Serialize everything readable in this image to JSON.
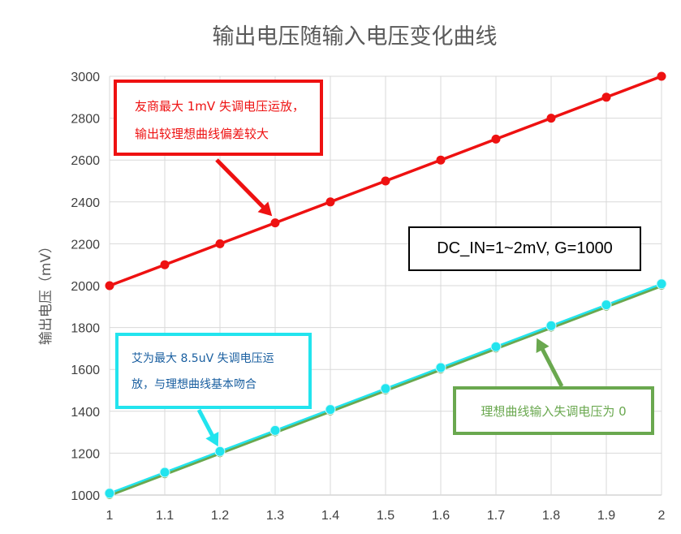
{
  "chart_data": {
    "type": "line",
    "title": "输出电压随输入电压变化曲线",
    "xlabel": "",
    "ylabel": "输出电压（mV）",
    "x": [
      1,
      1.1,
      1.2,
      1.3,
      1.4,
      1.5,
      1.6,
      1.7,
      1.8,
      1.9,
      2
    ],
    "x_tick_labels": [
      "1",
      "1.1",
      "1.2",
      "1.3",
      "1.4",
      "1.5",
      "1.6",
      "1.7",
      "1.8",
      "1.9",
      "2"
    ],
    "y_tick_labels": [
      "1000",
      "1200",
      "1400",
      "1600",
      "1800",
      "2000",
      "2200",
      "2400",
      "2600",
      "2800",
      "3000"
    ],
    "xlim": [
      1,
      2
    ],
    "ylim": [
      1000,
      3000
    ],
    "grid": true,
    "series": [
      {
        "color": "#ee1111",
        "values": [
          2000,
          2100,
          2200,
          2300,
          2400,
          2500,
          2600,
          2700,
          2800,
          2900,
          3000
        ]
      },
      {
        "color": "#6aa84f",
        "values": [
          1000,
          1100,
          1200,
          1300,
          1400,
          1500,
          1600,
          1700,
          1800,
          1900,
          2000
        ]
      },
      {
        "color": "#22e4ee",
        "values": [
          1008.5,
          1108.5,
          1208.5,
          1308.5,
          1408.5,
          1508.5,
          1608.5,
          1708.5,
          1808.5,
          1908.5,
          2008.5
        ]
      }
    ],
    "annotations": {
      "red_line1": "友商最大 1mV 失调电压运放，",
      "red_line2": "输出较理想曲线偏差较大",
      "dc_in": "DC_IN=1~2mV, G=1000",
      "cyan_line1": "艾为最大 8.5uV 失调电压运",
      "cyan_line2": "放，与理想曲线基本吻合",
      "green": "理想曲线输入失调电压为 0"
    }
  }
}
